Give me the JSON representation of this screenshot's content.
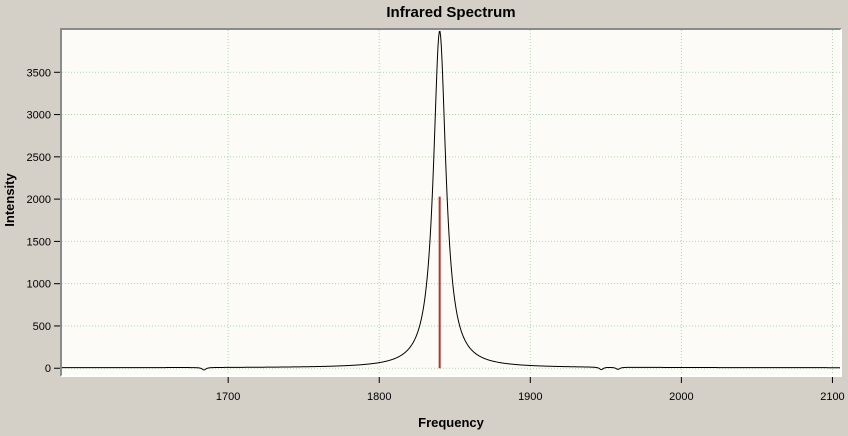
{
  "window": {
    "background": "#d4d0c8"
  },
  "chart_data": {
    "type": "line",
    "title": "Infrared Spectrum",
    "xlabel": "Frequency",
    "ylabel": "Intensity",
    "xlim": [
      1590,
      2105
    ],
    "ylim": [
      -80,
      4000
    ],
    "x_ticks": [
      1700,
      1800,
      1900,
      2000,
      2100
    ],
    "y_ticks": [
      0,
      500,
      1000,
      1500,
      2000,
      2500,
      3000,
      3500
    ],
    "grid": {
      "show": true,
      "color": "#a8d8a8",
      "style": "dotted"
    },
    "plot_background": "#fcfbf7",
    "series": [
      {
        "name": "spectrum",
        "color": "#000000",
        "baseline": 5,
        "peaks": [
          {
            "center": 1840,
            "amplitude": 3985,
            "hwhm": 5
          }
        ],
        "dips": [
          {
            "center": 1684,
            "depth": 30,
            "hwhm": 1.5
          },
          {
            "center": 1947,
            "depth": 30,
            "hwhm": 1.5
          },
          {
            "center": 1958,
            "depth": 25,
            "hwhm": 1.5
          }
        ]
      }
    ],
    "annotations": [
      {
        "type": "vline",
        "name": "peak-marker",
        "x": 1840,
        "y0": 0,
        "y1": 2030,
        "color": "#b5342a"
      }
    ],
    "legend": {
      "show": false
    }
  }
}
